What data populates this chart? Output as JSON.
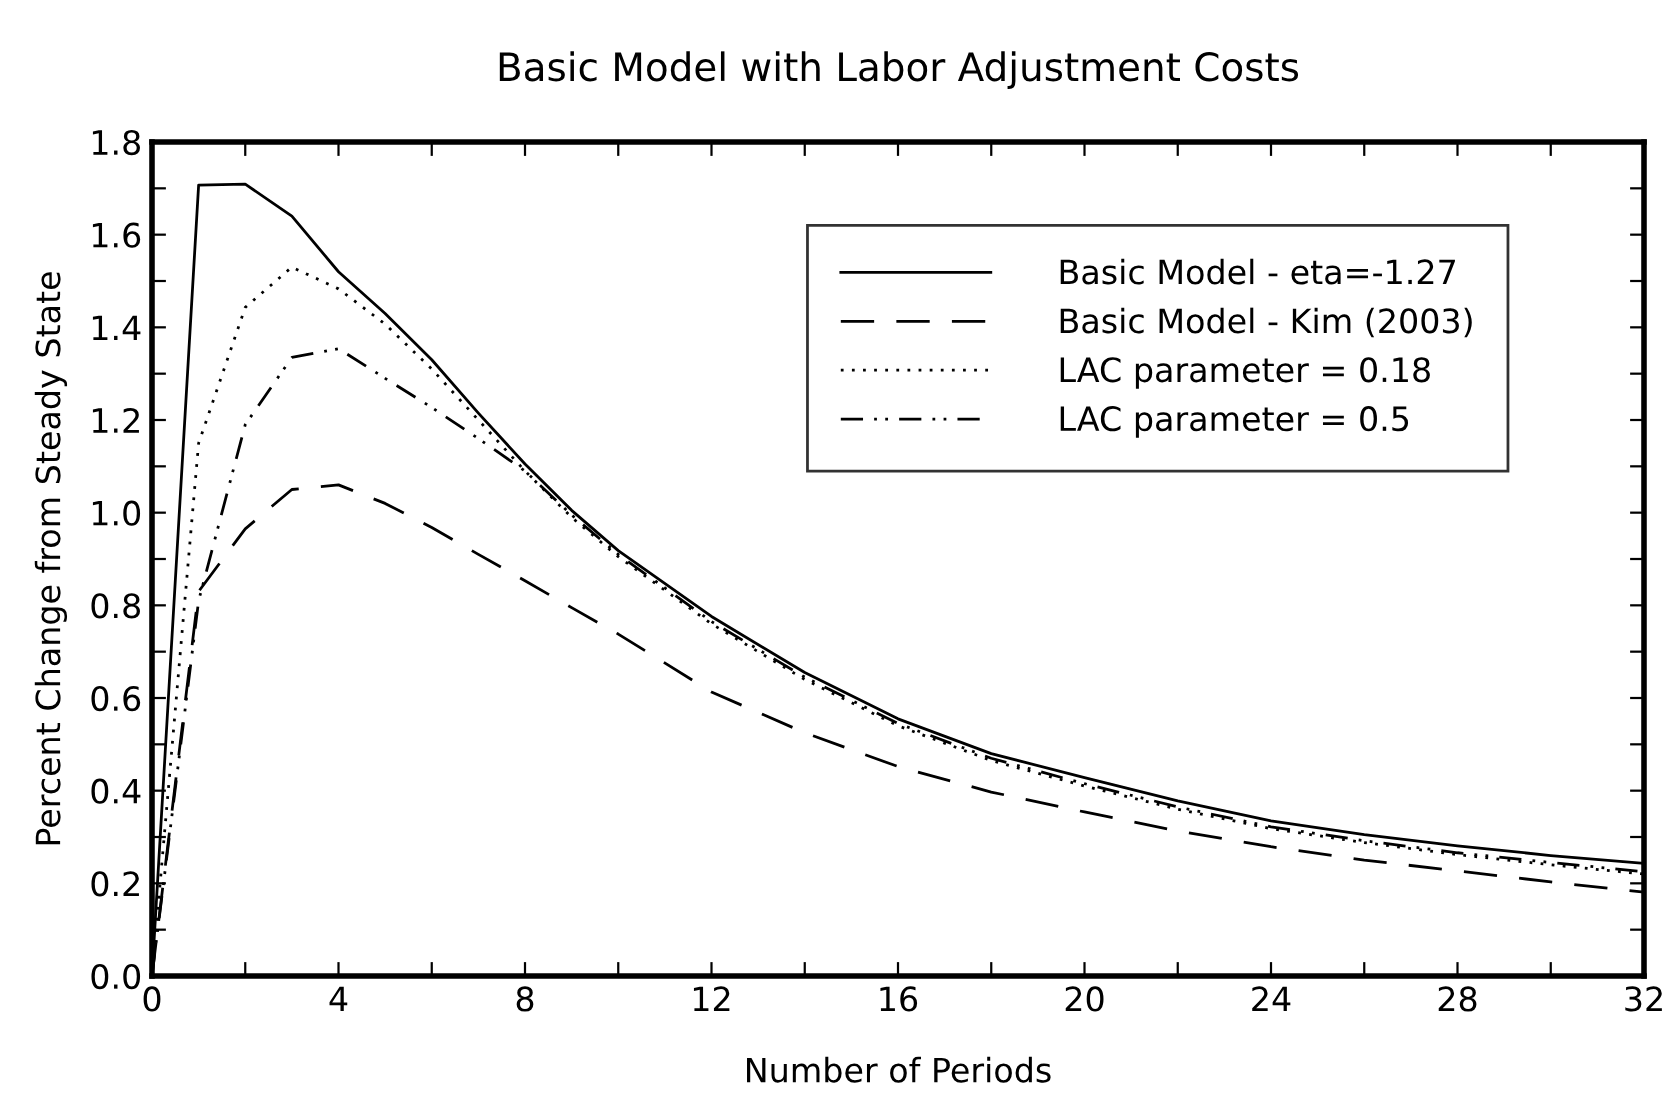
{
  "chart_data": {
    "type": "line",
    "title": "Basic Model with Labor Adjustment Costs",
    "xlabel": "Number of Periods",
    "ylabel": "Percent Change from Steady State",
    "x": [
      0,
      1,
      2,
      3,
      4,
      5,
      6,
      7,
      8,
      9,
      10,
      12,
      14,
      16,
      18,
      20,
      22,
      24,
      26,
      28,
      30,
      32
    ],
    "series": [
      {
        "name": "Basic Model - eta=-1.27",
        "color": "#000000",
        "line_style": "solid",
        "values": [
          0,
          1.707,
          1.709,
          1.64,
          1.52,
          1.43,
          1.33,
          1.215,
          1.105,
          1.005,
          0.918,
          0.776,
          0.655,
          0.555,
          0.48,
          0.428,
          0.378,
          0.335,
          0.305,
          0.281,
          0.26,
          0.243
        ]
      },
      {
        "name": "Basic Model - Kim (2003)",
        "color": "#000000",
        "line_style": "dashed",
        "values": [
          0,
          0.83,
          0.965,
          1.05,
          1.06,
          1.02,
          0.968,
          0.91,
          0.853,
          0.795,
          0.738,
          0.613,
          0.525,
          0.452,
          0.397,
          0.354,
          0.313,
          0.279,
          0.25,
          0.227,
          0.203,
          0.181
        ]
      },
      {
        "name": "LAC parameter = 0.18",
        "color": "#000000",
        "line_style": "dotted",
        "values": [
          0,
          1.15,
          1.443,
          1.53,
          1.483,
          1.407,
          1.31,
          1.2,
          1.09,
          0.99,
          0.905,
          0.76,
          0.64,
          0.54,
          0.465,
          0.41,
          0.36,
          0.318,
          0.288,
          0.262,
          0.24,
          0.22
        ]
      },
      {
        "name": "LAC parameter = 0.5",
        "color": "#000000",
        "line_style": "dashdot",
        "values": [
          0,
          0.81,
          1.19,
          1.335,
          1.354,
          1.29,
          1.227,
          1.16,
          1.09,
          0.995,
          0.91,
          0.765,
          0.645,
          0.545,
          0.47,
          0.415,
          0.365,
          0.322,
          0.292,
          0.266,
          0.245,
          0.225
        ]
      }
    ],
    "xlim": [
      0,
      32
    ],
    "xticks": [
      0,
      {
        "value": 2,
        "label": null
      },
      4,
      {
        "value": 6,
        "label": null
      },
      8,
      {
        "value": 10,
        "label": null
      },
      12,
      {
        "value": 14,
        "label": null
      },
      16,
      {
        "value": 18,
        "label": null
      },
      20,
      {
        "value": 22,
        "label": null
      },
      24,
      {
        "value": 26,
        "label": null
      },
      28,
      {
        "value": 30,
        "label": null
      },
      32
    ],
    "ylim": [
      0,
      1.8
    ],
    "yticks": [
      {
        "value": 0,
        "label": "0.0"
      },
      {
        "value": 0.1,
        "label": null
      },
      0.2,
      {
        "value": 0.3,
        "label": null
      },
      0.4,
      {
        "value": 0.5,
        "label": null
      },
      0.6,
      {
        "value": 0.7,
        "label": null
      },
      0.8,
      {
        "value": 0.9,
        "label": null
      },
      {
        "value": 1.0,
        "label": "1.0"
      },
      {
        "value": 1.1,
        "label": null
      },
      1.2,
      {
        "value": 1.3,
        "label": null
      },
      1.4,
      {
        "value": 1.5,
        "label": null
      },
      1.6,
      {
        "value": 1.7,
        "label": null
      },
      1.8
    ],
    "grid": false,
    "legend": "top right",
    "marker": "none"
  }
}
